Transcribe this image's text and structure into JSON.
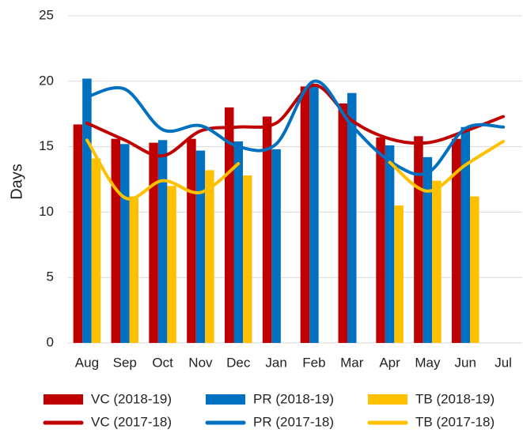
{
  "chart_data": {
    "type": "bar",
    "y_label": "Days",
    "categories": [
      "Aug",
      "Sep",
      "Oct",
      "Nov",
      "Dec",
      "Jan",
      "Feb",
      "Mar",
      "Apr",
      "May",
      "Jun",
      "Jul"
    ],
    "series": [
      {
        "name": "VC (2018-19)",
        "type": "bar",
        "color": "#c00000",
        "values": [
          16.7,
          15.6,
          15.3,
          15.6,
          18.0,
          17.3,
          19.6,
          18.3,
          15.7,
          15.8,
          15.6,
          null
        ]
      },
      {
        "name": "PR (2018-19)",
        "type": "bar",
        "color": "#0070c0",
        "values": [
          20.2,
          15.2,
          15.5,
          14.7,
          15.4,
          14.8,
          19.8,
          19.1,
          15.1,
          14.2,
          16.5,
          null
        ]
      },
      {
        "name": "TB (2018-19)",
        "type": "bar",
        "color": "#ffc000",
        "values": [
          14.1,
          11.2,
          12.0,
          13.2,
          12.8,
          null,
          null,
          null,
          10.5,
          12.4,
          11.2,
          null
        ]
      },
      {
        "name": "VC (2017-18)",
        "type": "line",
        "color": "#c00000",
        "values": [
          16.8,
          15.5,
          14.3,
          16.2,
          16.5,
          16.8,
          19.7,
          17.0,
          15.6,
          15.3,
          16.2,
          17.3
        ]
      },
      {
        "name": "PR (2017-18)",
        "type": "line",
        "color": "#0070c0",
        "values": [
          18.8,
          19.4,
          16.3,
          16.6,
          15.0,
          15.2,
          20.0,
          16.6,
          13.9,
          13.0,
          16.4,
          16.5
        ]
      },
      {
        "name": "TB (2017-18)",
        "type": "line",
        "color": "#ffc000",
        "values": [
          15.5,
          11.1,
          12.4,
          11.5,
          13.7,
          null,
          null,
          null,
          13.8,
          11.6,
          13.6,
          15.4
        ]
      }
    ],
    "ylim": [
      0,
      25
    ],
    "yticks": [
      0,
      5,
      10,
      15,
      20,
      25
    ],
    "grid": true
  }
}
